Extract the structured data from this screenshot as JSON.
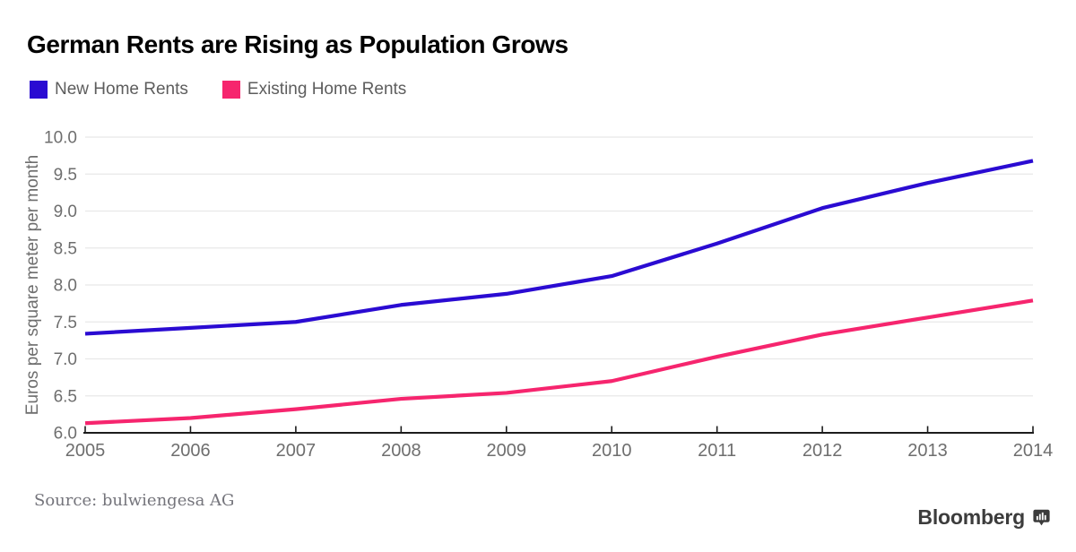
{
  "header": {
    "title": "German Rents are Rising as Population Grows"
  },
  "chart_data": {
    "type": "line",
    "title": "German Rents are Rising as Population Grows",
    "xlabel": "",
    "ylabel": "Euros per square meter per month",
    "ylim": [
      6.0,
      10.0
    ],
    "y_ticks": [
      "6.0",
      "6.5",
      "7.0",
      "7.5",
      "8.0",
      "8.5",
      "9.0",
      "9.5",
      "10.0"
    ],
    "x": [
      "2005",
      "2006",
      "2007",
      "2008",
      "2009",
      "2010",
      "2011",
      "2012",
      "2013",
      "2014"
    ],
    "series": [
      {
        "name": "New Home Rents",
        "color": "#2a0bd2",
        "values": [
          7.34,
          7.42,
          7.5,
          7.73,
          7.88,
          8.12,
          8.56,
          9.04,
          9.38,
          9.68
        ]
      },
      {
        "name": "Existing Home Rents",
        "color": "#f6256e",
        "values": [
          6.13,
          6.2,
          6.32,
          6.46,
          6.54,
          6.7,
          7.03,
          7.33,
          7.56,
          7.79
        ]
      }
    ],
    "grid": "horizontal",
    "legend_position": "top-left",
    "colors": {
      "gridline": "#e8e8e8",
      "axis": "#1c1c1c",
      "tick_label": "#6e6e6e"
    }
  },
  "footer": {
    "source": "Source: bulwiengesa AG",
    "brand": "Bloomberg"
  }
}
